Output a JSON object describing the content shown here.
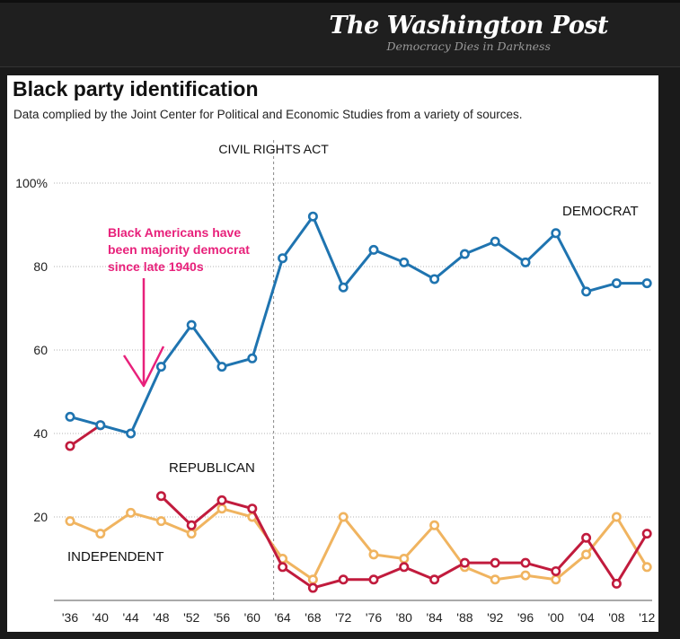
{
  "header": {
    "brand_name": "The Washington Post",
    "brand_tagline": "Democracy Dies in Darkness"
  },
  "chart_data": {
    "type": "line",
    "title": "Black party identification",
    "subtitle": "Data complied by the Joint Center for Political and Economic Studies from a variety of sources.",
    "categories": [
      "'36",
      "'40",
      "'44",
      "'48",
      "'52",
      "'56",
      "'60",
      "'64",
      "'68",
      "'72",
      "'76",
      "'80",
      "'84",
      "'88",
      "'92",
      "'96",
      "'00",
      "'04",
      "'08",
      "'12"
    ],
    "ylim": [
      0,
      100
    ],
    "yticks": [
      20,
      40,
      60,
      80,
      100
    ],
    "ytick_labels": [
      "20",
      "40",
      "60",
      "80",
      "100%"
    ],
    "grid": true,
    "series": [
      {
        "name": "DEMOCRAT",
        "color": "#1f74b0",
        "values": [
          44,
          42,
          40,
          56,
          66,
          56,
          58,
          82,
          92,
          75,
          84,
          81,
          77,
          83,
          86,
          81,
          88,
          74,
          76,
          76
        ]
      },
      {
        "name": "REPUBLICAN",
        "color": "#c11b3d",
        "values": [
          37,
          42,
          null,
          25,
          18,
          24,
          22,
          8,
          3,
          5,
          5,
          8,
          5,
          9,
          9,
          9,
          7,
          15,
          4,
          16
        ]
      },
      {
        "name": "INDEPENDENT",
        "color": "#f0b460",
        "values": [
          19,
          16,
          21,
          19,
          16,
          22,
          20,
          10,
          5,
          20,
          11,
          10,
          18,
          8,
          5,
          6,
          5,
          11,
          20,
          8
        ]
      }
    ],
    "annotations": {
      "event": {
        "label": "CIVIL RIGHTS ACT",
        "category": "'64"
      },
      "note": {
        "text": [
          "Black Americans have",
          "been majority democrat",
          "since late 1940s"
        ],
        "color": "#e8217b"
      }
    }
  }
}
